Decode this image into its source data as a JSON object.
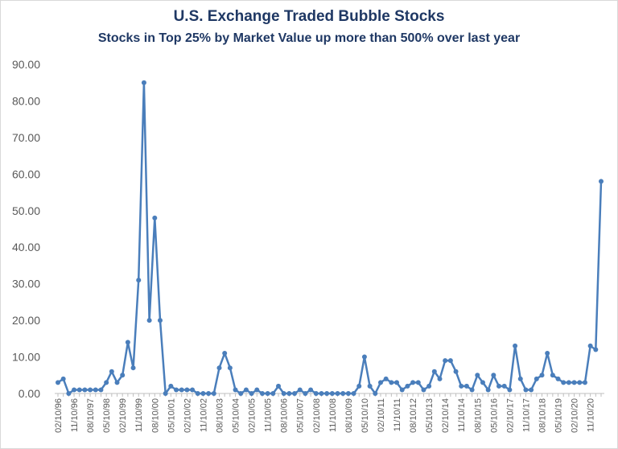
{
  "chart_data": {
    "type": "line",
    "title": "U.S. Exchange Traded Bubble Stocks",
    "subtitle": "Stocks in Top 25% by Market Value up more than 500% over last year",
    "xlabel": "",
    "ylabel": "",
    "ylim": [
      0,
      90
    ],
    "yticks": [
      "0.00",
      "10.00",
      "20.00",
      "30.00",
      "40.00",
      "50.00",
      "60.00",
      "70.00",
      "80.00",
      "90.00"
    ],
    "xtick_labels": [
      "02/10/96",
      "11/10/96",
      "08/10/97",
      "05/10/98",
      "02/10/99",
      "11/10/99",
      "08/10/00",
      "05/10/01",
      "02/10/02",
      "11/10/02",
      "08/10/03",
      "05/10/04",
      "02/10/05",
      "11/10/05",
      "08/10/06",
      "05/10/07",
      "02/10/08",
      "11/10/08",
      "08/10/09",
      "05/10/10",
      "02/10/11",
      "11/10/11",
      "08/10/12",
      "05/10/13",
      "02/10/14",
      "11/10/14",
      "08/10/15",
      "05/10/16",
      "02/10/17",
      "11/10/17",
      "08/10/18",
      "05/10/19",
      "02/10/20",
      "11/10/20"
    ],
    "grid": false,
    "color": "#4a7ebb",
    "series": [
      {
        "values": [
          3,
          4,
          0,
          1,
          1,
          1,
          1,
          1,
          1,
          3,
          6,
          3,
          5,
          14,
          7,
          31,
          85,
          20,
          48,
          20,
          0,
          2,
          1,
          1,
          1,
          1,
          0,
          0,
          0,
          0,
          7,
          11,
          7,
          1,
          0,
          1,
          0,
          1,
          0,
          0,
          0,
          2,
          0,
          0,
          0,
          1,
          0,
          1,
          0,
          0,
          0,
          0,
          0,
          0,
          0,
          0,
          2,
          10,
          2,
          0,
          3,
          4,
          3,
          3,
          1,
          2,
          3,
          3,
          1,
          2,
          6,
          4,
          9,
          9,
          6,
          2,
          2,
          1,
          5,
          3,
          1,
          5,
          2,
          2,
          1,
          13,
          4,
          1,
          1,
          4,
          5,
          11,
          5,
          4,
          3,
          3,
          3,
          3,
          3,
          13,
          12,
          58
        ]
      }
    ]
  }
}
